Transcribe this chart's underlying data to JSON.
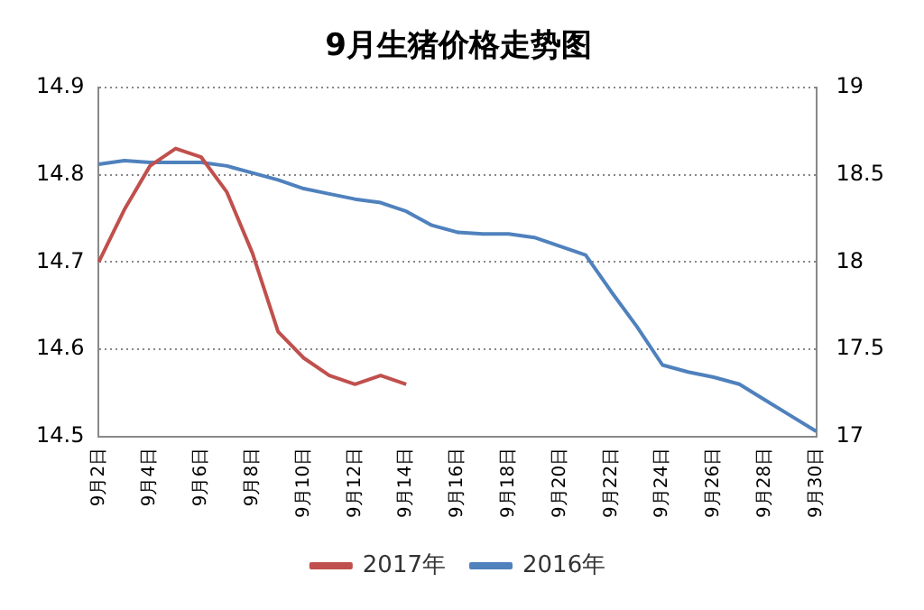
{
  "chart_data": {
    "type": "line",
    "title": "9月生猪价格走势图",
    "categories": [
      "9月2日",
      null,
      "9月4日",
      null,
      "9月6日",
      null,
      "9月8日",
      null,
      "9月10日",
      null,
      "9月12日",
      null,
      "9月14日",
      null,
      "9月16日",
      null,
      "9月18日",
      null,
      "9月20日",
      null,
      "9月22日",
      null,
      "9月24日",
      null,
      "9月26日",
      null,
      "9月28日",
      null,
      "9月30日"
    ],
    "series": [
      {
        "name": "2017年",
        "color": "#c0504d",
        "values": [
          14.7,
          14.76,
          14.81,
          14.83,
          14.82,
          14.78,
          14.71,
          14.62,
          14.59,
          14.57,
          14.56,
          14.57,
          14.56,
          null,
          null,
          null,
          null,
          null,
          null,
          null,
          null,
          null,
          null,
          null,
          null,
          null,
          null,
          null,
          null
        ]
      },
      {
        "name": "2016年",
        "color": "#4f81bd",
        "axis": "y2",
        "values": [
          18.56,
          18.58,
          18.57,
          18.57,
          18.57,
          18.55,
          18.51,
          18.47,
          18.42,
          18.39,
          18.36,
          18.34,
          18.29,
          18.21,
          18.17,
          18.16,
          18.16,
          18.14,
          18.09,
          18.04,
          17.83,
          17.63,
          17.41,
          17.37,
          17.34,
          17.3,
          17.21,
          17.12,
          17.03
        ]
      }
    ],
    "ylim": [
      14.5,
      14.9
    ],
    "yticks": [
      14.5,
      14.6,
      14.7,
      14.8,
      14.9
    ],
    "y2lim": [
      17,
      19
    ],
    "y2ticks": [
      17,
      17.5,
      18,
      18.5,
      19
    ],
    "grid": "y",
    "legend": "bottom",
    "marker": "none",
    "line_style": "solid"
  }
}
